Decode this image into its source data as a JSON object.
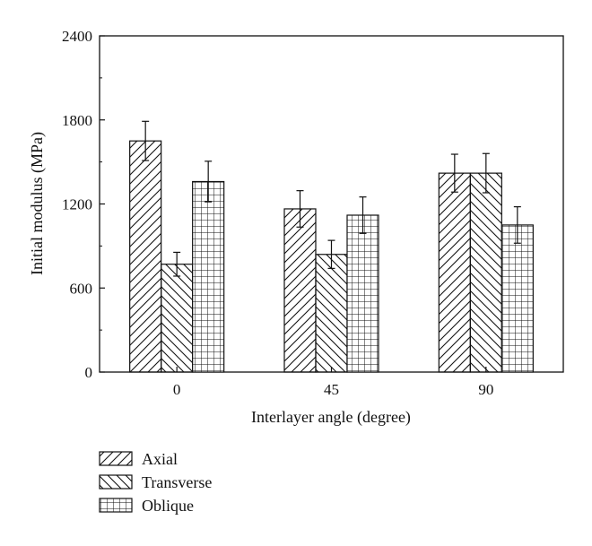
{
  "chart_data": {
    "type": "bar",
    "title": "",
    "xlabel": "Interlayer angle (degree)",
    "ylabel": "Initial modulus (MPa)",
    "categories": [
      "0",
      "45",
      "90"
    ],
    "ylim": [
      0,
      2400
    ],
    "yticks": [
      0,
      600,
      1200,
      1800,
      2400
    ],
    "grid": false,
    "legend_position": "bottom-left",
    "series": [
      {
        "name": "Axial",
        "pattern": "diagonal-forward",
        "values": [
          1650,
          1165,
          1420
        ],
        "errors": [
          140,
          130,
          135
        ]
      },
      {
        "name": "Transverse",
        "pattern": "diagonal-backward",
        "values": [
          770,
          840,
          1420
        ],
        "errors": [
          85,
          100,
          140
        ]
      },
      {
        "name": "Oblique",
        "pattern": "grid",
        "values": [
          1360,
          1120,
          1050
        ],
        "errors": [
          145,
          130,
          130
        ]
      }
    ],
    "colors": {
      "line": "#111111",
      "background": "#ffffff"
    }
  }
}
